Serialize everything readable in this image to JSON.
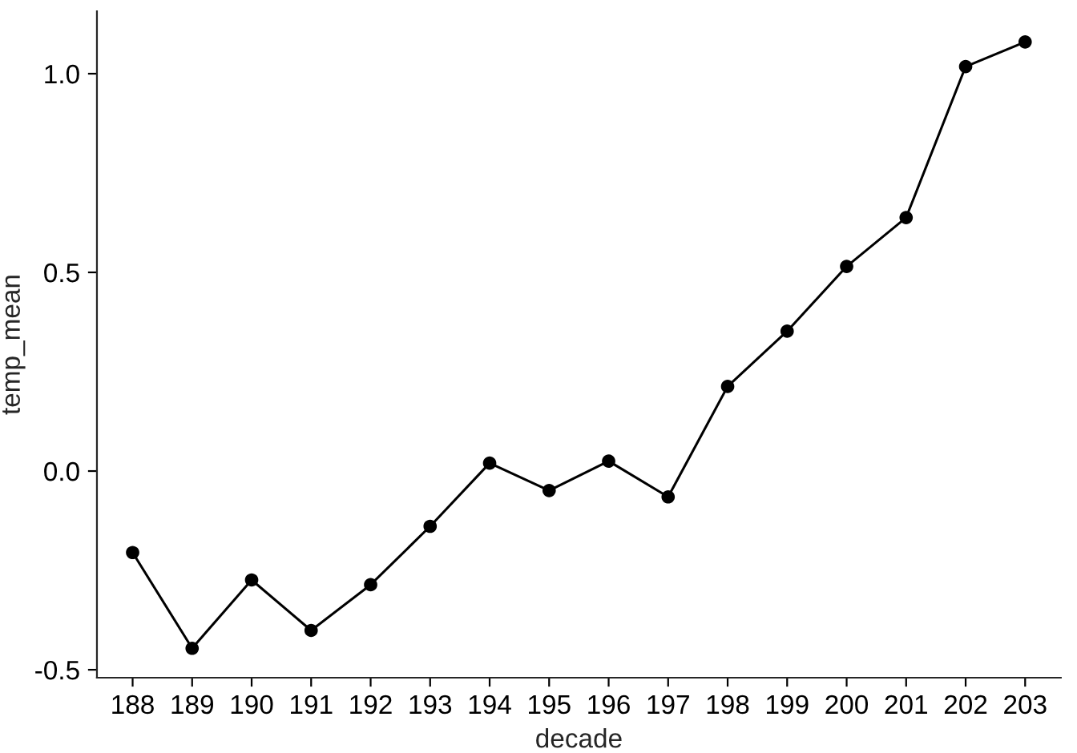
{
  "chart_data": {
    "type": "line",
    "xlabel": "decade",
    "ylabel": "temp_mean",
    "categories": [
      "188",
      "189",
      "190",
      "191",
      "192",
      "193",
      "194",
      "195",
      "196",
      "197",
      "198",
      "199",
      "200",
      "201",
      "202",
      "203"
    ],
    "series": [
      {
        "color": "#000000",
        "values": [
          -0.205,
          -0.446,
          -0.274,
          -0.401,
          -0.286,
          -0.139,
          0.02,
          -0.049,
          0.025,
          -0.065,
          0.213,
          0.352,
          0.515,
          0.638,
          1.018,
          1.08
        ]
      }
    ],
    "ylim": [
      -0.52,
      1.157
    ],
    "yticks": [
      {
        "value": -0.5,
        "label": "-0.5"
      },
      {
        "value": 0.0,
        "label": "0.0"
      },
      {
        "value": 0.5,
        "label": "0.5"
      },
      {
        "value": 1.0,
        "label": "1.0"
      }
    ],
    "marker": "circle",
    "line_style": "solid"
  }
}
